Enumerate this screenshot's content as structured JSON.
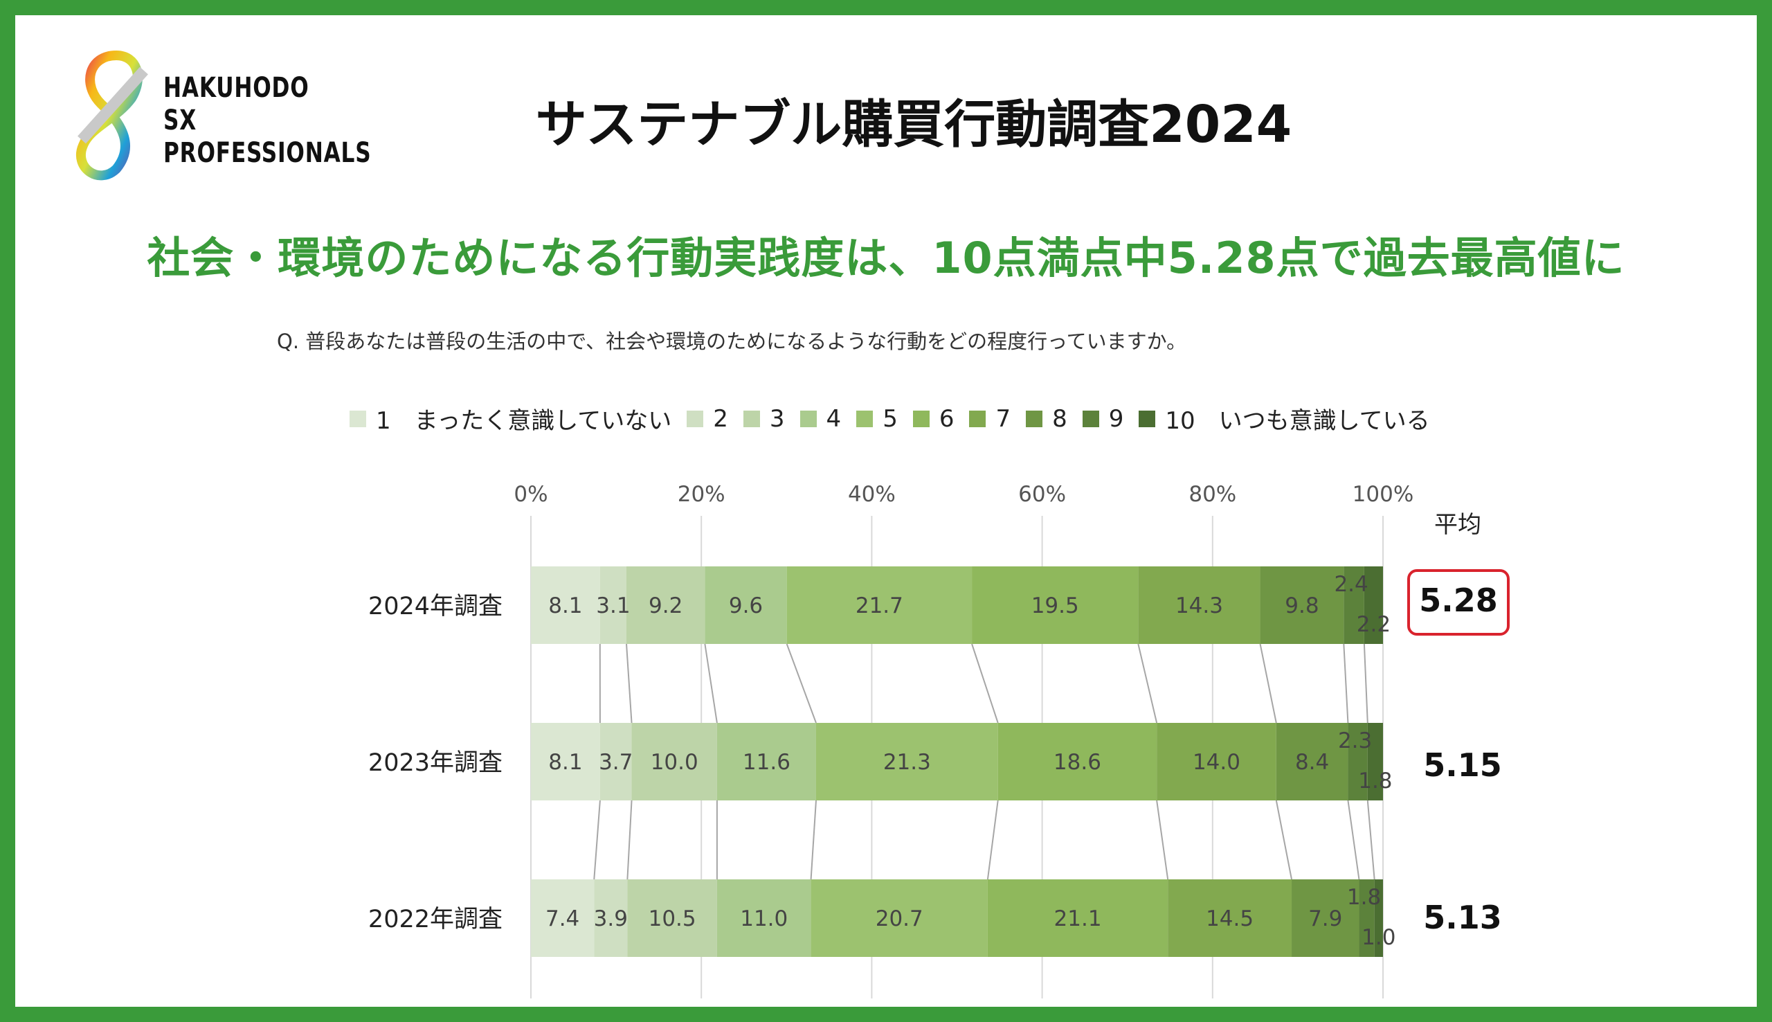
{
  "header": {
    "logo_lines": [
      "HAKUHODO",
      "SX",
      "PROFESSIONALS"
    ],
    "title": "サステナブル購買行動調査2024",
    "headline": "社会・環境のためになる行動実践度は、10点満点中5.28点で過去最高値に",
    "question": "Q. 普段あなたは普段の生活の中で、社会や環境のためになるような行動をどの程度行っていますか。"
  },
  "average_label": "平均",
  "colors": {
    "frame": "#3a9b3a",
    "headline": "#3a9b3a",
    "highlight_box": "#d9232d",
    "segments": [
      "#dbe7d2",
      "#cfdfc2",
      "#bdd4a8",
      "#aacb8e",
      "#9cc26f",
      "#8fb85c",
      "#82a94f",
      "#6f9644",
      "#5c823b",
      "#4b6e32"
    ]
  },
  "chart_data": {
    "type": "bar",
    "orientation": "horizontal",
    "stacked": "100%",
    "x_ticks": [
      "0%",
      "20%",
      "40%",
      "60%",
      "80%",
      "100%"
    ],
    "xlim": [
      0,
      100
    ],
    "grid": true,
    "legend_position": "top",
    "legend_labels": [
      "1　まったく意識していない",
      "2",
      "3",
      "4",
      "5",
      "6",
      "7",
      "8",
      "9",
      "10　いつも意識している"
    ],
    "categories": [
      "2024年調査",
      "2023年調査",
      "2022年調査"
    ],
    "values": [
      [
        8.1,
        3.1,
        9.2,
        9.6,
        21.7,
        19.5,
        14.3,
        9.8,
        2.4,
        2.2
      ],
      [
        8.1,
        3.7,
        10.0,
        11.6,
        21.3,
        18.6,
        14.0,
        8.4,
        2.3,
        1.8
      ],
      [
        7.4,
        3.9,
        10.5,
        11.0,
        20.7,
        21.1,
        14.5,
        7.9,
        1.8,
        1.0
      ]
    ],
    "value_labels": [
      [
        "8.1",
        "3.1",
        "9.2",
        "9.6",
        "21.7",
        "19.5",
        "14.3",
        "9.8",
        "2.4",
        "2.2"
      ],
      [
        "8.1",
        "3.7",
        "10.0",
        "11.6",
        "21.3",
        "18.6",
        "14.0",
        "8.4",
        "2.3",
        "1.8"
      ],
      [
        "7.4",
        "3.9",
        "10.5",
        "11.0",
        "20.7",
        "21.1",
        "14.5",
        "7.9",
        "1.8",
        "1.0"
      ]
    ],
    "averages": [
      "5.28",
      "5.15",
      "5.13"
    ],
    "connector_lines": true
  }
}
